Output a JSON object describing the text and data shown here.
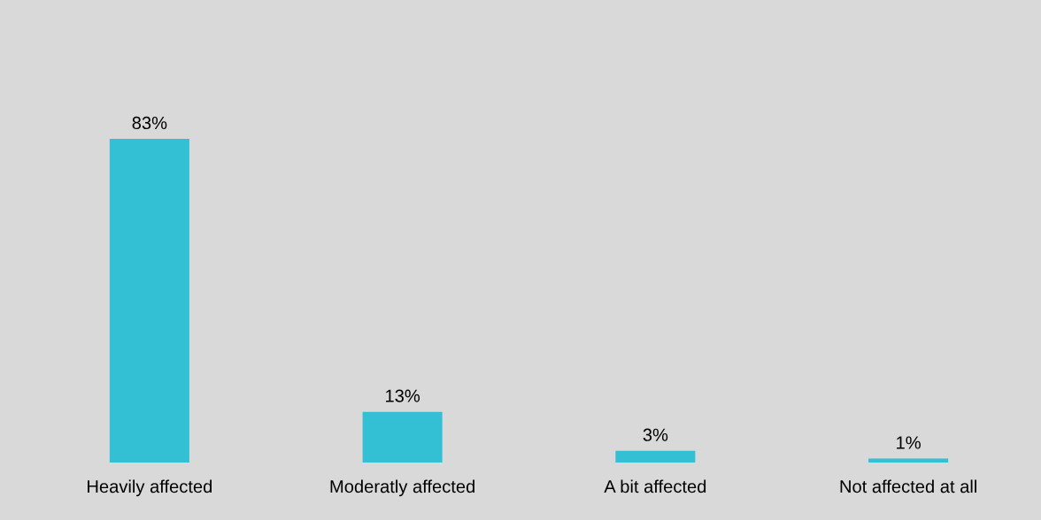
{
  "chart_data": {
    "type": "bar",
    "categories": [
      "Heavily affected",
      "Moderatly affected",
      "A bit affected",
      "Not affected at all"
    ],
    "values": [
      83,
      13,
      3,
      1
    ],
    "value_labels": [
      "83%",
      "13%",
      "3%",
      "1%"
    ],
    "color": "#33bfd4",
    "tick_labels": "x"
  }
}
